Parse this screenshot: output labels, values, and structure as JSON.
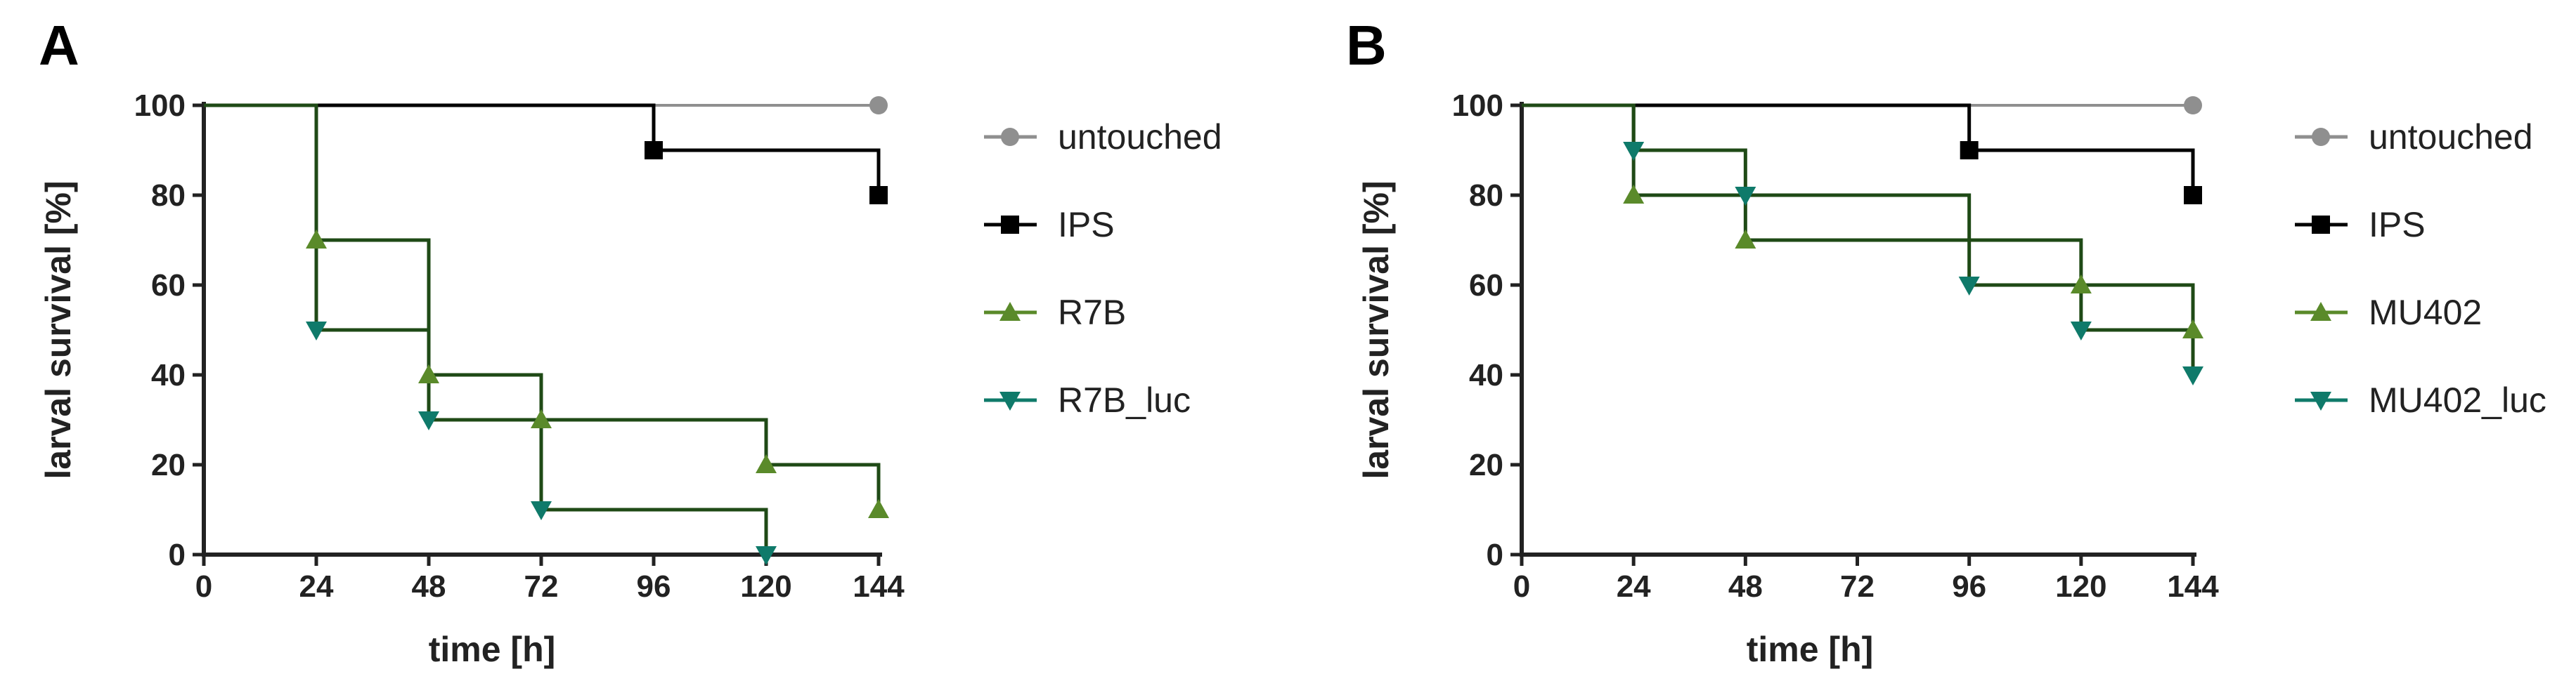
{
  "colors": {
    "untouched": "#8f8f8f",
    "IPS": "#000000",
    "R7B": "#5a8a2a",
    "R7B_luc": "#0f7a6a",
    "MU402": "#5a8a2a",
    "MU402_luc": "#0f7a6a",
    "dark_step": "#1f4a16"
  },
  "chart_data": [
    {
      "type": "line",
      "panel_label": "A",
      "xlabel": "time [h]",
      "ylabel": "larval survival [%]",
      "xlim": [
        0,
        144
      ],
      "ylim": [
        0,
        100
      ],
      "xticks": [
        "0",
        "24",
        "48",
        "72",
        "96",
        "120",
        "144"
      ],
      "yticks": [
        "0",
        "20",
        "40",
        "60",
        "80",
        "100"
      ],
      "legend_position": "right",
      "series": [
        {
          "name": "untouched",
          "marker": "circle",
          "step_x": [
            0,
            144
          ],
          "step_y": [
            100,
            100
          ],
          "points_x": [
            144
          ],
          "points_y": [
            100
          ]
        },
        {
          "name": "IPS",
          "marker": "square",
          "step_x": [
            0,
            96,
            144
          ],
          "step_y": [
            100,
            90,
            80
          ],
          "points_x": [
            96,
            144
          ],
          "points_y": [
            90,
            80
          ]
        },
        {
          "name": "R7B",
          "marker": "triangle-up",
          "step_x": [
            0,
            24,
            48,
            72,
            120,
            144
          ],
          "step_y": [
            100,
            70,
            40,
            30,
            20,
            10
          ],
          "points_x": [
            24,
            48,
            72,
            120,
            144
          ],
          "points_y": [
            70,
            40,
            30,
            20,
            10
          ]
        },
        {
          "name": "R7B_luc",
          "marker": "triangle-down",
          "step_x": [
            0,
            24,
            48,
            72,
            120
          ],
          "step_y": [
            100,
            50,
            30,
            10,
            0
          ],
          "points_x": [
            24,
            48,
            72,
            120
          ],
          "points_y": [
            50,
            30,
            10,
            0
          ]
        }
      ]
    },
    {
      "type": "line",
      "panel_label": "B",
      "xlabel": "time [h]",
      "ylabel": "larval survival [%]",
      "xlim": [
        0,
        144
      ],
      "ylim": [
        0,
        100
      ],
      "xticks": [
        "0",
        "24",
        "48",
        "72",
        "96",
        "120",
        "144"
      ],
      "yticks": [
        "0",
        "20",
        "40",
        "60",
        "80",
        "100"
      ],
      "legend_position": "right",
      "series": [
        {
          "name": "untouched",
          "marker": "circle",
          "step_x": [
            0,
            144
          ],
          "step_y": [
            100,
            100
          ],
          "points_x": [
            144
          ],
          "points_y": [
            100
          ]
        },
        {
          "name": "IPS",
          "marker": "square",
          "step_x": [
            0,
            96,
            144
          ],
          "step_y": [
            100,
            90,
            80
          ],
          "points_x": [
            96,
            144
          ],
          "points_y": [
            90,
            80
          ]
        },
        {
          "name": "MU402",
          "marker": "triangle-up",
          "step_x": [
            0,
            24,
            48,
            120,
            144
          ],
          "step_y": [
            100,
            80,
            70,
            60,
            50
          ],
          "points_x": [
            24,
            48,
            120,
            144
          ],
          "points_y": [
            80,
            70,
            60,
            50
          ]
        },
        {
          "name": "MU402_luc",
          "marker": "triangle-down",
          "step_x": [
            0,
            24,
            48,
            96,
            120,
            144
          ],
          "step_y": [
            100,
            90,
            80,
            60,
            50,
            40
          ],
          "points_x": [
            24,
            48,
            96,
            120,
            144
          ],
          "points_y": [
            90,
            80,
            60,
            50,
            40
          ]
        }
      ]
    }
  ]
}
